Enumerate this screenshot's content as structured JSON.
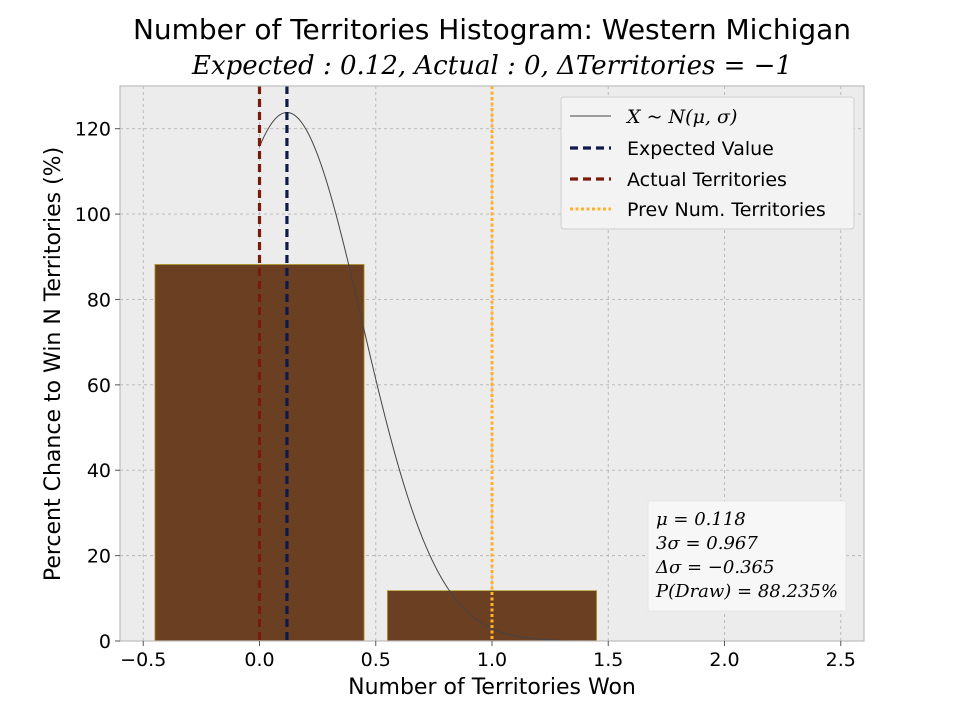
{
  "chart_data": {
    "type": "bar",
    "title": "Number of Territories Histogram: Western Michigan",
    "subtitle": "Expected : 0.12, Actual : 0, ΔTerritories = −1",
    "xlabel": "Number of Territories Won",
    "ylabel": "Percent Chance to Win N Territories (%)",
    "xlim": [
      -0.6,
      2.6
    ],
    "ylim": [
      0,
      130
    ],
    "grid": true,
    "xticks": [
      -0.5,
      0.0,
      0.5,
      1.0,
      1.5,
      2.0,
      2.5
    ],
    "xtick_labels": [
      "−0.5",
      "0.0",
      "0.5",
      "1.0",
      "1.5",
      "2.0",
      "2.5"
    ],
    "yticks": [
      0,
      20,
      40,
      60,
      80,
      100,
      120
    ],
    "ytick_labels": [
      "0",
      "20",
      "40",
      "60",
      "80",
      "100",
      "120"
    ],
    "bars": [
      {
        "x": 0,
        "value": 88.2,
        "width": 0.9
      },
      {
        "x": 1,
        "value": 11.8,
        "width": 0.9
      }
    ],
    "normal_curve": {
      "mu": 0.118,
      "sigma": 0.3223,
      "peak": 123.8
    },
    "vlines": [
      {
        "key": "expected",
        "x": 0.118,
        "color": "#0d1a4a",
        "style": "dashed"
      },
      {
        "key": "actual",
        "x": 0.0,
        "color": "#7a1a0a",
        "style": "dashed"
      },
      {
        "key": "previous",
        "x": 1.0,
        "color": "#ffb12e",
        "style": "dotted"
      }
    ],
    "legend": {
      "placement": "top-right",
      "items": [
        {
          "label": "X ~ N(μ, σ)",
          "style": "thin",
          "color": "#444444"
        },
        {
          "label": "Expected Value",
          "style": "dashed",
          "color": "#0d1a4a"
        },
        {
          "label": "Actual Territories",
          "style": "dashed",
          "color": "#7a1a0a"
        },
        {
          "label": "Prev Num. Territories",
          "style": "dotted",
          "color": "#ffb12e"
        }
      ]
    },
    "stats_box": {
      "placement": "bottom-right",
      "lines": [
        "μ = 0.118",
        "3σ = 0.967",
        "Δσ = −0.365",
        "P(Draw) = 88.235%"
      ]
    },
    "colors": {
      "bar_fill": "#6b3f22",
      "bar_edge": "#b5a030",
      "plot_bg": "#ececec",
      "grid": "#b5b5b5",
      "curve": "#444444"
    }
  }
}
